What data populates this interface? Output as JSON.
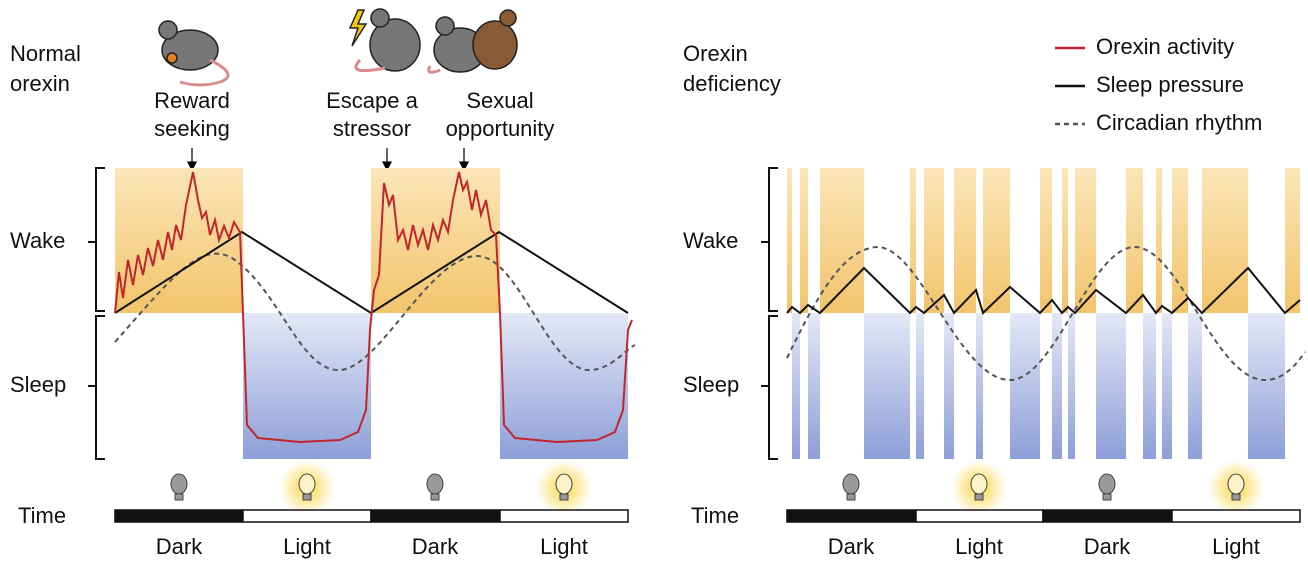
{
  "left_panel": {
    "title": [
      "Normal",
      "orexin"
    ],
    "annotations": [
      [
        "Reward",
        "seeking"
      ],
      [
        "Escape a",
        "stressor"
      ],
      [
        "Sexual",
        "opportunity"
      ]
    ],
    "y_labels": [
      "Wake",
      "Sleep"
    ],
    "time_label": "Time",
    "periods": [
      "Dark",
      "Light",
      "Dark",
      "Light"
    ]
  },
  "right_panel": {
    "title": [
      "Orexin",
      "deficiency"
    ],
    "y_labels": [
      "Wake",
      "Sleep"
    ],
    "time_label": "Time",
    "periods": [
      "Dark",
      "Light",
      "Dark",
      "Light"
    ]
  },
  "legend": [
    "Orexin activity",
    "Sleep pressure",
    "Circadian rhythm"
  ]
}
